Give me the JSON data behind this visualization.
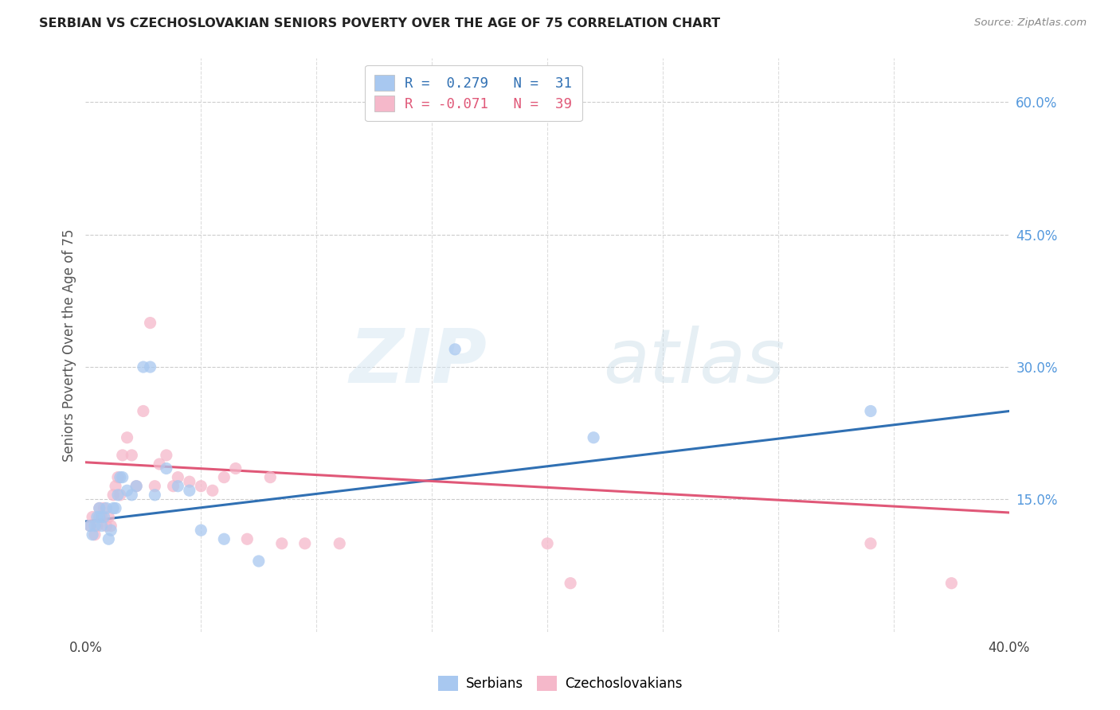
{
  "title": "SERBIAN VS CZECHOSLOVAKIAN SENIORS POVERTY OVER THE AGE OF 75 CORRELATION CHART",
  "source": "Source: ZipAtlas.com",
  "ylabel": "Seniors Poverty Over the Age of 75",
  "ytick_labels": [
    "60.0%",
    "45.0%",
    "30.0%",
    "15.0%"
  ],
  "ytick_values": [
    0.6,
    0.45,
    0.3,
    0.15
  ],
  "xlim": [
    0.0,
    0.4
  ],
  "ylim": [
    0.0,
    0.65
  ],
  "legend_r_serbian": "R =  0.279",
  "legend_n_serbian": "N =  31",
  "legend_r_czech": "R = -0.071",
  "legend_n_czech": "N =  39",
  "serbian_color": "#a8c8f0",
  "czech_color": "#f5b8ca",
  "serbian_line_color": "#3070b3",
  "czech_line_color": "#e05878",
  "background_color": "#ffffff",
  "serbian_x": [
    0.002,
    0.003,
    0.004,
    0.005,
    0.006,
    0.006,
    0.007,
    0.008,
    0.009,
    0.01,
    0.011,
    0.012,
    0.013,
    0.014,
    0.015,
    0.016,
    0.018,
    0.02,
    0.022,
    0.025,
    0.028,
    0.03,
    0.035,
    0.04,
    0.045,
    0.05,
    0.06,
    0.075,
    0.16,
    0.22,
    0.34
  ],
  "serbian_y": [
    0.12,
    0.11,
    0.12,
    0.13,
    0.14,
    0.13,
    0.12,
    0.13,
    0.14,
    0.105,
    0.115,
    0.14,
    0.14,
    0.155,
    0.175,
    0.175,
    0.16,
    0.155,
    0.165,
    0.3,
    0.3,
    0.155,
    0.185,
    0.165,
    0.16,
    0.115,
    0.105,
    0.08,
    0.32,
    0.22,
    0.25
  ],
  "czech_x": [
    0.002,
    0.003,
    0.004,
    0.005,
    0.006,
    0.007,
    0.008,
    0.009,
    0.01,
    0.011,
    0.012,
    0.013,
    0.014,
    0.015,
    0.016,
    0.018,
    0.02,
    0.022,
    0.025,
    0.028,
    0.03,
    0.032,
    0.035,
    0.038,
    0.04,
    0.045,
    0.05,
    0.055,
    0.06,
    0.065,
    0.07,
    0.08,
    0.085,
    0.095,
    0.11,
    0.2,
    0.21,
    0.34,
    0.375
  ],
  "czech_y": [
    0.12,
    0.13,
    0.11,
    0.12,
    0.14,
    0.13,
    0.14,
    0.12,
    0.13,
    0.12,
    0.155,
    0.165,
    0.175,
    0.155,
    0.2,
    0.22,
    0.2,
    0.165,
    0.25,
    0.35,
    0.165,
    0.19,
    0.2,
    0.165,
    0.175,
    0.17,
    0.165,
    0.16,
    0.175,
    0.185,
    0.105,
    0.175,
    0.1,
    0.1,
    0.1,
    0.1,
    0.055,
    0.1,
    0.055
  ],
  "watermark_zip": "ZIP",
  "watermark_atlas": "atlas",
  "marker_size": 120
}
